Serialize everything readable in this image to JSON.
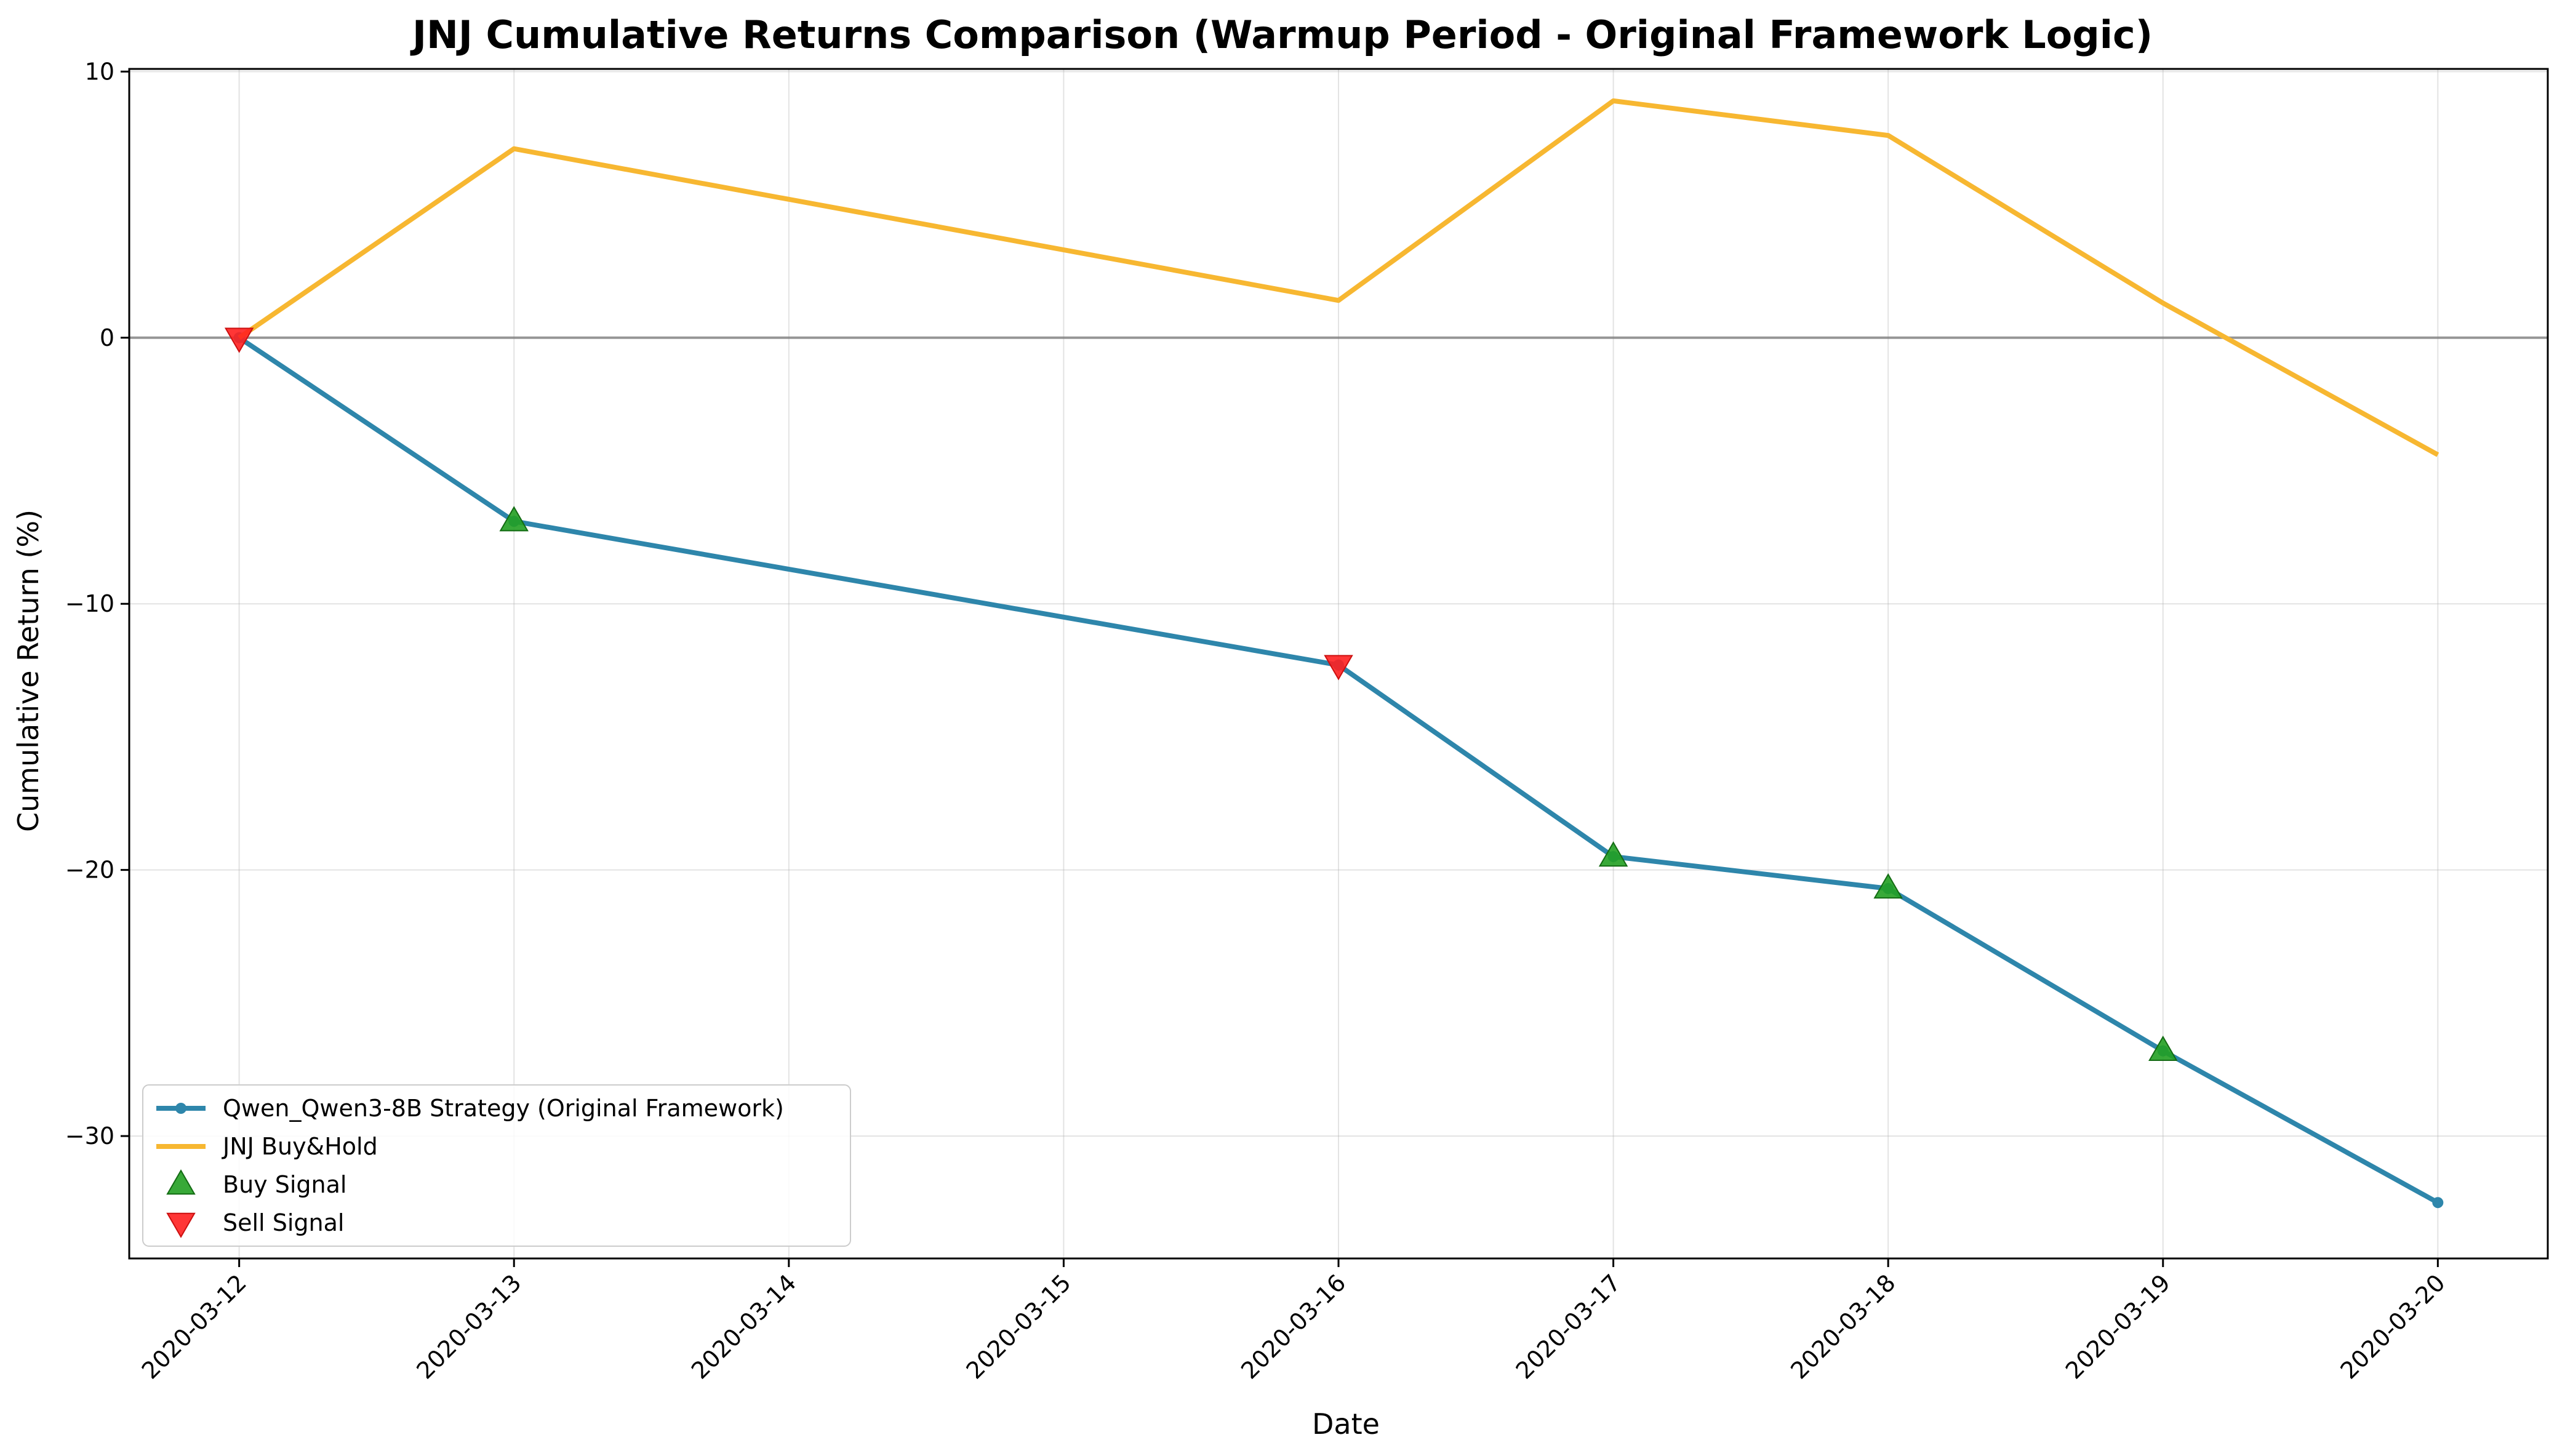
{
  "chart_data": {
    "type": "line",
    "title": "JNJ Cumulative Returns Comparison (Warmup Period - Original Framework Logic)",
    "xlabel": "Date",
    "ylabel": "Cumulative Return (%)",
    "x_ticks": [
      "2020-03-12",
      "2020-03-13",
      "2020-03-14",
      "2020-03-15",
      "2020-03-16",
      "2020-03-17",
      "2020-03-18",
      "2020-03-19",
      "2020-03-20"
    ],
    "y_ticks": [
      10,
      0,
      -10,
      -20,
      -30
    ],
    "y_tick_labels": [
      "10",
      "0",
      "−10",
      "−20",
      "−30"
    ],
    "xlim": [
      "2020-03-11.6",
      "2020-03-20.4"
    ],
    "ylim": [
      -34.6,
      10.1
    ],
    "grid": true,
    "zero_line": true,
    "legend_position": "lower-left",
    "series": [
      {
        "name": "Qwen_Qwen3-8B Strategy (Original Framework)",
        "color": "#2e86ab",
        "marker": "circle",
        "x": [
          "2020-03-12",
          "2020-03-13",
          "2020-03-16",
          "2020-03-17",
          "2020-03-18",
          "2020-03-19",
          "2020-03-20"
        ],
        "y": [
          0,
          -6.9,
          -12.3,
          -19.5,
          -20.7,
          -26.8,
          -32.5
        ]
      },
      {
        "name": "JNJ Buy&Hold",
        "color": "#f7b731",
        "marker": "none",
        "x": [
          "2020-03-12",
          "2020-03-13",
          "2020-03-16",
          "2020-03-17",
          "2020-03-18",
          "2020-03-19",
          "2020-03-20"
        ],
        "y": [
          0,
          7.1,
          1.4,
          8.9,
          7.6,
          1.3,
          -4.4
        ]
      }
    ],
    "signals": [
      {
        "name": "Buy Signal",
        "color": "#22a022",
        "marker": "triangle-up",
        "points": [
          {
            "x": "2020-03-13",
            "y": -6.9
          },
          {
            "x": "2020-03-17",
            "y": -19.5
          },
          {
            "x": "2020-03-18",
            "y": -20.7
          },
          {
            "x": "2020-03-19",
            "y": -26.8
          }
        ]
      },
      {
        "name": "Sell Signal",
        "color": "#ff2020",
        "marker": "triangle-down",
        "points": [
          {
            "x": "2020-03-12",
            "y": 0
          },
          {
            "x": "2020-03-16",
            "y": -12.3
          }
        ]
      }
    ]
  }
}
